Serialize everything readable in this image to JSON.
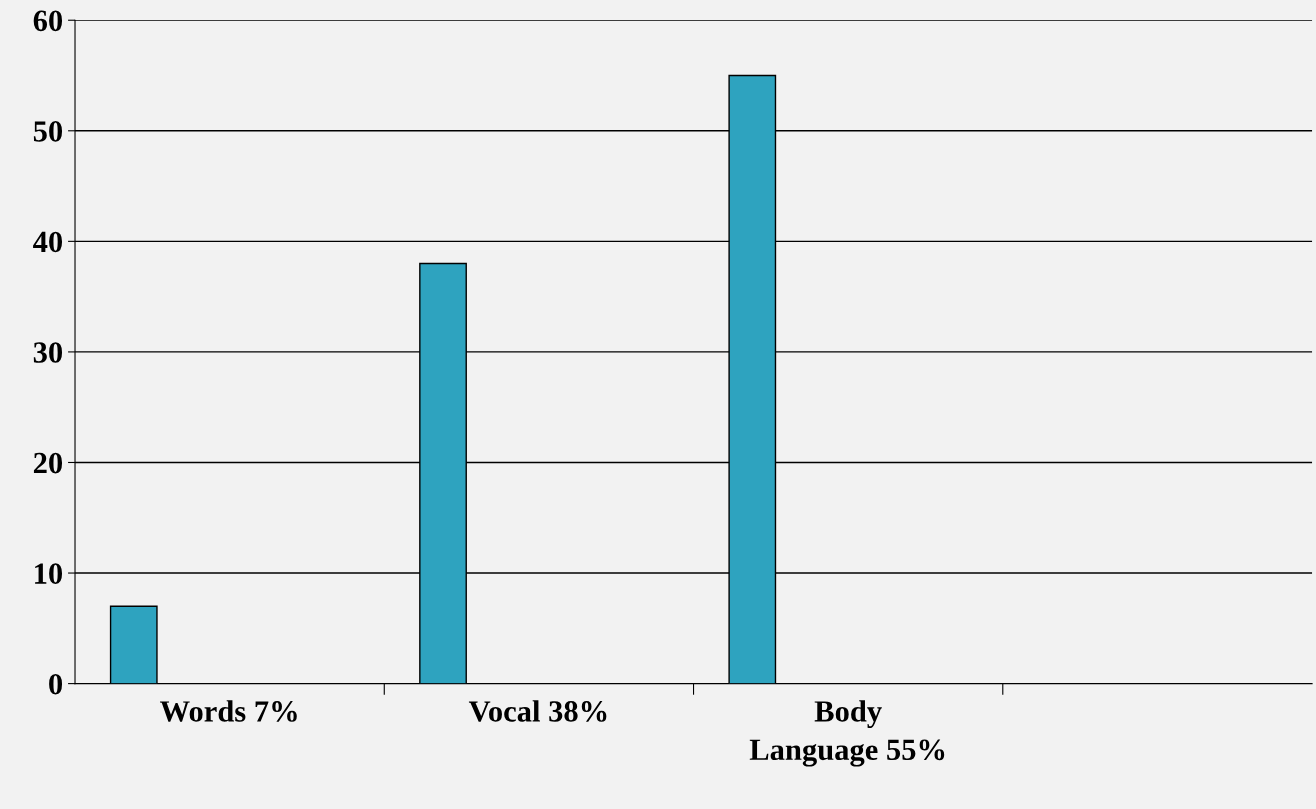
{
  "chart_data": {
    "type": "bar",
    "categories": [
      "Words 7%",
      "Vocal 38%",
      "Body\nLanguage 55%",
      null
    ],
    "values": [
      7,
      38,
      55,
      null
    ],
    "color": "#2ea3bf",
    "ylim": [
      0,
      60
    ],
    "yticks": [
      0,
      10,
      20,
      30,
      40,
      50,
      60
    ],
    "grid": "y",
    "legend": false
  }
}
